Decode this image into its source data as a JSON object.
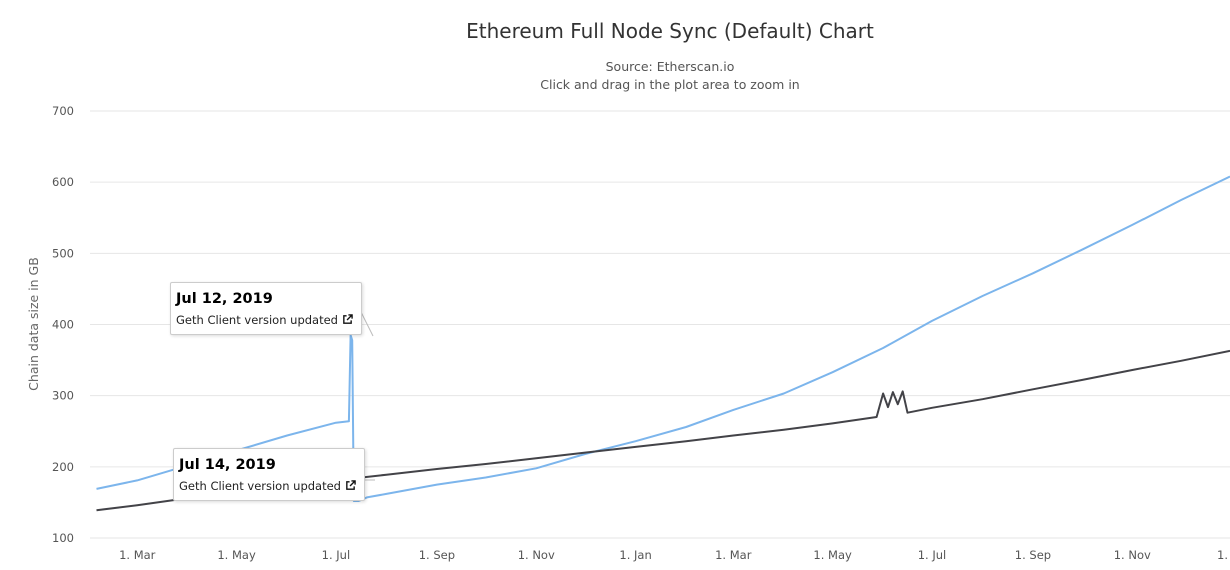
{
  "chart_data": {
    "type": "line",
    "title": "Ethereum Full Node Sync (Default) Chart",
    "subtitle": "Source: Etherscan.io",
    "hint": "Click and drag in the plot area to zoom in",
    "ylabel": "Chain data size in GB",
    "ylim": [
      100,
      700
    ],
    "yticks": [
      100,
      200,
      300,
      400,
      500,
      600,
      700
    ],
    "xlim": [
      "2019-01-31",
      "2020-12-31"
    ],
    "xticks": [
      {
        "date": "2019-03-01",
        "label": "1. Mar"
      },
      {
        "date": "2019-05-01",
        "label": "1. May"
      },
      {
        "date": "2019-07-01",
        "label": "1. Jul"
      },
      {
        "date": "2019-09-01",
        "label": "1. Sep"
      },
      {
        "date": "2019-11-01",
        "label": "1. Nov"
      },
      {
        "date": "2020-01-01",
        "label": "1. Jan"
      },
      {
        "date": "2020-03-01",
        "label": "1. Mar"
      },
      {
        "date": "2020-05-01",
        "label": "1. May"
      },
      {
        "date": "2020-07-01",
        "label": "1. Jul"
      },
      {
        "date": "2020-09-01",
        "label": "1. Sep"
      },
      {
        "date": "2020-11-01",
        "label": "1. Nov"
      },
      {
        "date": "2021-01-01",
        "label": "1."
      }
    ],
    "grid": true,
    "series": [
      {
        "color": "#7cb5ec",
        "points": [
          [
            "2019-02-04",
            169
          ],
          [
            "2019-03-01",
            181
          ],
          [
            "2019-04-01",
            202
          ],
          [
            "2019-05-01",
            223
          ],
          [
            "2019-06-01",
            244
          ],
          [
            "2019-07-01",
            262
          ],
          [
            "2019-07-09",
            264
          ],
          [
            "2019-07-10",
            385
          ],
          [
            "2019-07-11",
            378
          ],
          [
            "2019-07-12",
            152
          ],
          [
            "2019-07-15",
            152
          ],
          [
            "2019-07-20",
            157
          ],
          [
            "2019-08-01",
            162
          ],
          [
            "2019-09-01",
            175
          ],
          [
            "2019-10-01",
            185
          ],
          [
            "2019-11-01",
            198
          ],
          [
            "2019-12-01",
            218
          ],
          [
            "2020-01-01",
            236
          ],
          [
            "2020-02-01",
            256
          ],
          [
            "2020-03-01",
            280
          ],
          [
            "2020-04-01",
            303
          ],
          [
            "2020-05-01",
            333
          ],
          [
            "2020-06-01",
            367
          ],
          [
            "2020-07-01",
            405
          ],
          [
            "2020-08-01",
            440
          ],
          [
            "2020-09-01",
            472
          ],
          [
            "2020-10-01",
            505
          ],
          [
            "2020-11-01",
            540
          ],
          [
            "2020-12-01",
            575
          ],
          [
            "2020-12-31",
            608
          ]
        ]
      },
      {
        "color": "#434348",
        "points": [
          [
            "2019-02-04",
            139
          ],
          [
            "2019-03-01",
            146
          ],
          [
            "2019-04-01",
            156
          ],
          [
            "2019-05-01",
            164
          ],
          [
            "2019-06-01",
            172
          ],
          [
            "2019-07-01",
            181
          ],
          [
            "2019-08-01",
            189
          ],
          [
            "2019-09-01",
            197
          ],
          [
            "2019-10-01",
            204
          ],
          [
            "2019-11-01",
            212
          ],
          [
            "2019-12-01",
            220
          ],
          [
            "2020-01-01",
            228
          ],
          [
            "2020-02-01",
            236
          ],
          [
            "2020-03-01",
            244
          ],
          [
            "2020-04-01",
            252
          ],
          [
            "2020-05-01",
            261
          ],
          [
            "2020-05-28",
            270
          ],
          [
            "2020-06-01",
            303
          ],
          [
            "2020-06-04",
            284
          ],
          [
            "2020-06-07",
            305
          ],
          [
            "2020-06-10",
            288
          ],
          [
            "2020-06-13",
            306
          ],
          [
            "2020-06-16",
            276
          ],
          [
            "2020-07-01",
            283
          ],
          [
            "2020-08-01",
            295
          ],
          [
            "2020-09-01",
            309
          ],
          [
            "2020-10-01",
            322
          ],
          [
            "2020-11-01",
            336
          ],
          [
            "2020-12-01",
            349
          ],
          [
            "2020-12-31",
            363
          ]
        ]
      }
    ],
    "annotations": [
      {
        "date": "Jul 12, 2019",
        "text": "Geth Client version updated"
      },
      {
        "date": "Jul 14, 2019",
        "text": "Geth Client version updated"
      }
    ]
  }
}
